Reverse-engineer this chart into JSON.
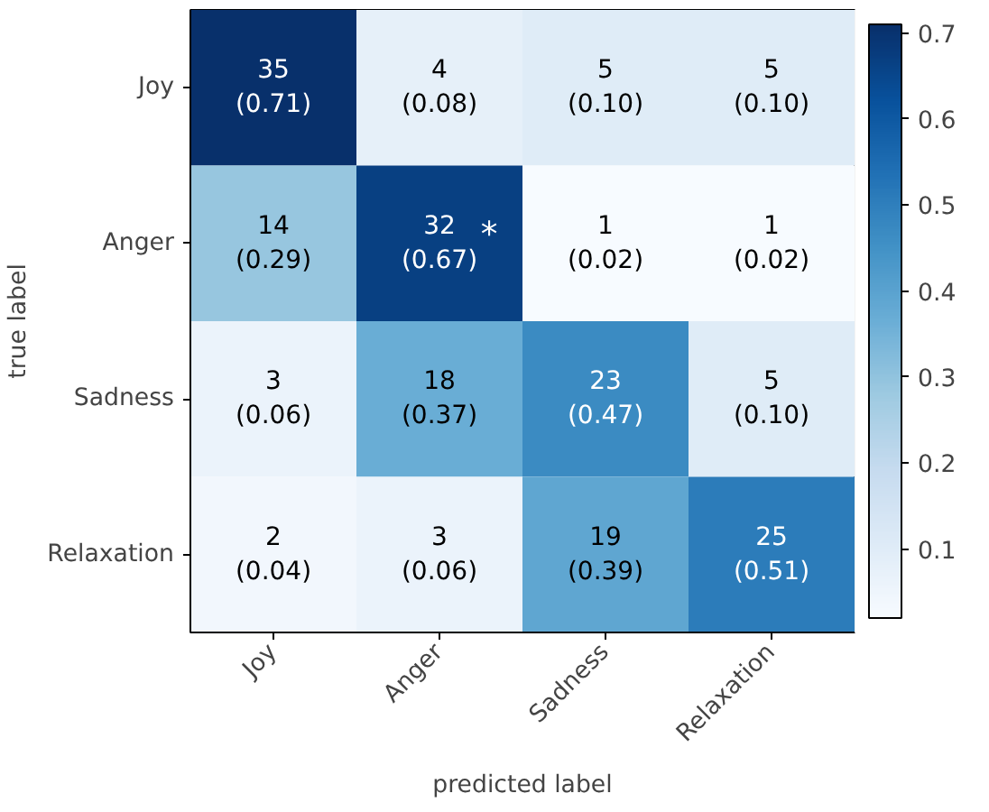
{
  "chart_data": {
    "type": "heatmap",
    "xlabel": "predicted label",
    "ylabel": "true label",
    "categories": [
      "Joy",
      "Anger",
      "Sadness",
      "Relaxation"
    ],
    "y_categories": [
      "Joy",
      "Anger",
      "Sadness",
      "Relaxation"
    ],
    "cells": [
      [
        0.71,
        0.08,
        0.1,
        0.1
      ],
      [
        0.29,
        0.67,
        0.02,
        0.02
      ],
      [
        0.06,
        0.37,
        0.47,
        0.1
      ],
      [
        0.04,
        0.06,
        0.39,
        0.51
      ]
    ],
    "cell_labels": [
      [
        "35\n(0.71)",
        "4\n(0.08)",
        "5\n(0.10)",
        "5\n(0.10)"
      ],
      [
        "14\n(0.29)",
        "32\n(0.67)",
        "1\n(0.02)",
        "1\n(0.02)"
      ],
      [
        "3\n(0.06)",
        "18\n(0.37)",
        "23\n(0.47)",
        "5\n(0.10)"
      ],
      [
        "2\n(0.04)",
        "3\n(0.06)",
        "19\n(0.39)",
        "25\n(0.51)"
      ]
    ],
    "clim": [
      0.02,
      0.71
    ],
    "cticks": [
      0.1,
      0.2,
      0.3,
      0.4,
      0.5,
      0.6,
      0.7
    ],
    "annotations": [
      "*"
    ]
  }
}
